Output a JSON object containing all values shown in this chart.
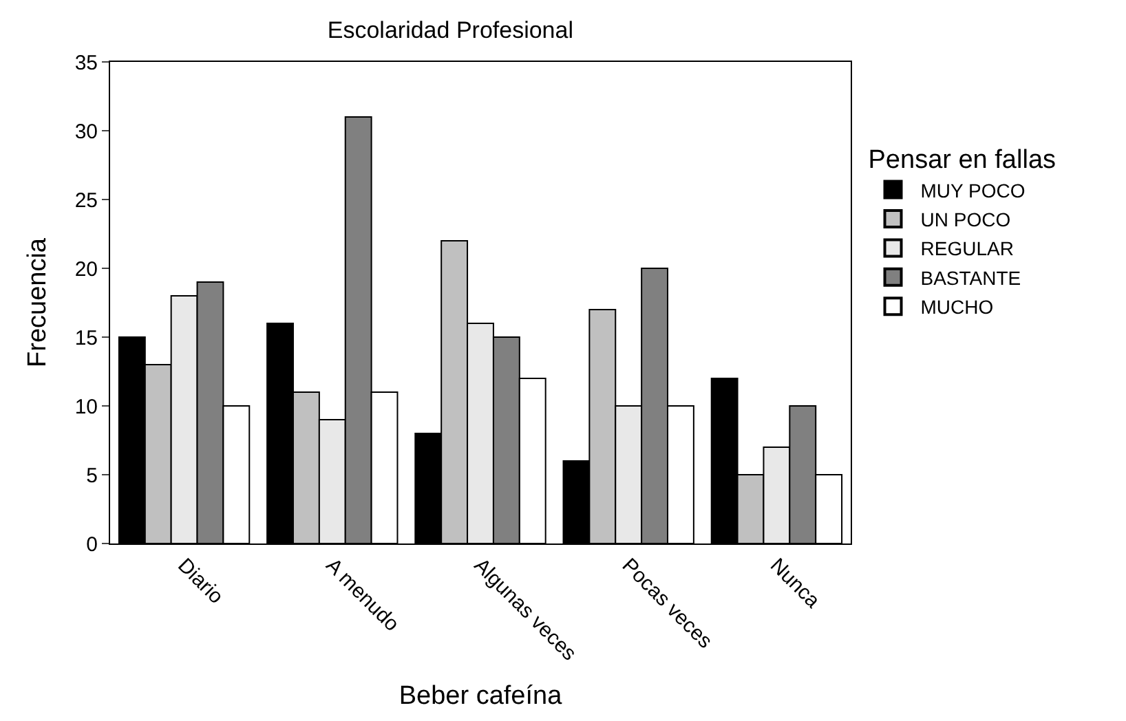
{
  "chart_data": {
    "type": "bar",
    "title": "Escolaridad Profesional",
    "xlabel": "Beber cafeína",
    "ylabel": "Frecuencia",
    "legend_title": "Pensar en fallas",
    "categories": [
      "Diario",
      "A menudo",
      "Algunas veces",
      "Pocas veces",
      "Nunca"
    ],
    "series": [
      {
        "name": "MUY POCO",
        "color": "#000000",
        "values": [
          15,
          16,
          8,
          6,
          12
        ]
      },
      {
        "name": "UN POCO",
        "color": "#c0c0c0",
        "values": [
          13,
          11,
          22,
          17,
          5
        ]
      },
      {
        "name": "REGULAR",
        "color": "#e8e8e8",
        "values": [
          18,
          9,
          16,
          10,
          7
        ]
      },
      {
        "name": "BASTANTE",
        "color": "#808080",
        "values": [
          19,
          31,
          15,
          20,
          10
        ]
      },
      {
        "name": "MUCHO",
        "color": "#ffffff",
        "values": [
          10,
          11,
          12,
          10,
          5
        ]
      }
    ],
    "ylim": [
      0,
      35
    ],
    "yticks": [
      0,
      5,
      10,
      15,
      20,
      25,
      30,
      35
    ],
    "grid": false,
    "legend": "right"
  }
}
